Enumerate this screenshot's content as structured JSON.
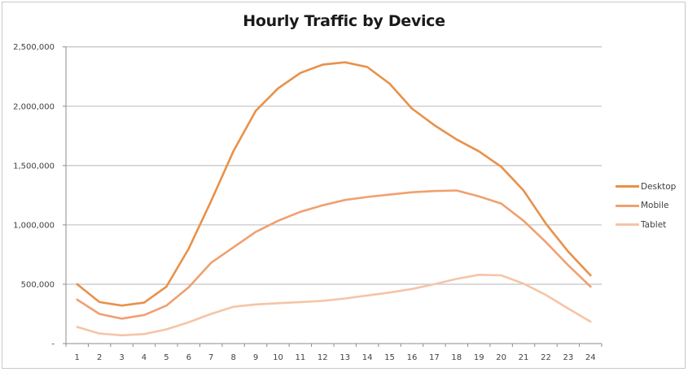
{
  "chart_data": {
    "type": "line",
    "title": "Hourly Traffic by Device",
    "xlabel": "",
    "ylabel": "",
    "x": [
      1,
      2,
      3,
      4,
      5,
      6,
      7,
      8,
      9,
      10,
      11,
      12,
      13,
      14,
      15,
      16,
      17,
      18,
      19,
      20,
      21,
      22,
      23,
      24
    ],
    "categories": [
      "1",
      "2",
      "3",
      "4",
      "5",
      "6",
      "7",
      "8",
      "9",
      "10",
      "11",
      "12",
      "13",
      "14",
      "15",
      "16",
      "17",
      "18",
      "19",
      "20",
      "21",
      "22",
      "23",
      "24"
    ],
    "ylim": [
      0,
      2500000
    ],
    "yticks": [
      0,
      500000,
      1000000,
      1500000,
      2000000,
      2500000
    ],
    "ytick_labels": [
      "-",
      "500,000",
      "1,000,000",
      "1,500,000",
      "2,000,000",
      "2,500,000"
    ],
    "grid": true,
    "legend_position": "right",
    "series": [
      {
        "name": "Desktop",
        "color": "#E8914A",
        "values": [
          500000,
          350000,
          320000,
          345000,
          480000,
          800000,
          1200000,
          1620000,
          1960000,
          2150000,
          2280000,
          2350000,
          2370000,
          2330000,
          2190000,
          1980000,
          1840000,
          1720000,
          1620000,
          1490000,
          1290000,
          1010000,
          775000,
          575000
        ]
      },
      {
        "name": "Mobile",
        "color": "#F0A070",
        "values": [
          370000,
          250000,
          210000,
          240000,
          320000,
          475000,
          680000,
          810000,
          940000,
          1035000,
          1110000,
          1165000,
          1210000,
          1235000,
          1255000,
          1275000,
          1285000,
          1290000,
          1240000,
          1180000,
          1035000,
          855000,
          660000,
          480000
        ]
      },
      {
        "name": "Tablet",
        "color": "#F6C4A8",
        "values": [
          140000,
          85000,
          70000,
          80000,
          120000,
          180000,
          250000,
          310000,
          330000,
          340000,
          350000,
          360000,
          380000,
          405000,
          430000,
          460000,
          500000,
          545000,
          580000,
          575000,
          505000,
          410000,
          295000,
          185000
        ]
      }
    ]
  },
  "colors": {
    "gridline": "#c8c8c8",
    "axis": "#8c8c8c",
    "frame": "#c8c8c8"
  }
}
